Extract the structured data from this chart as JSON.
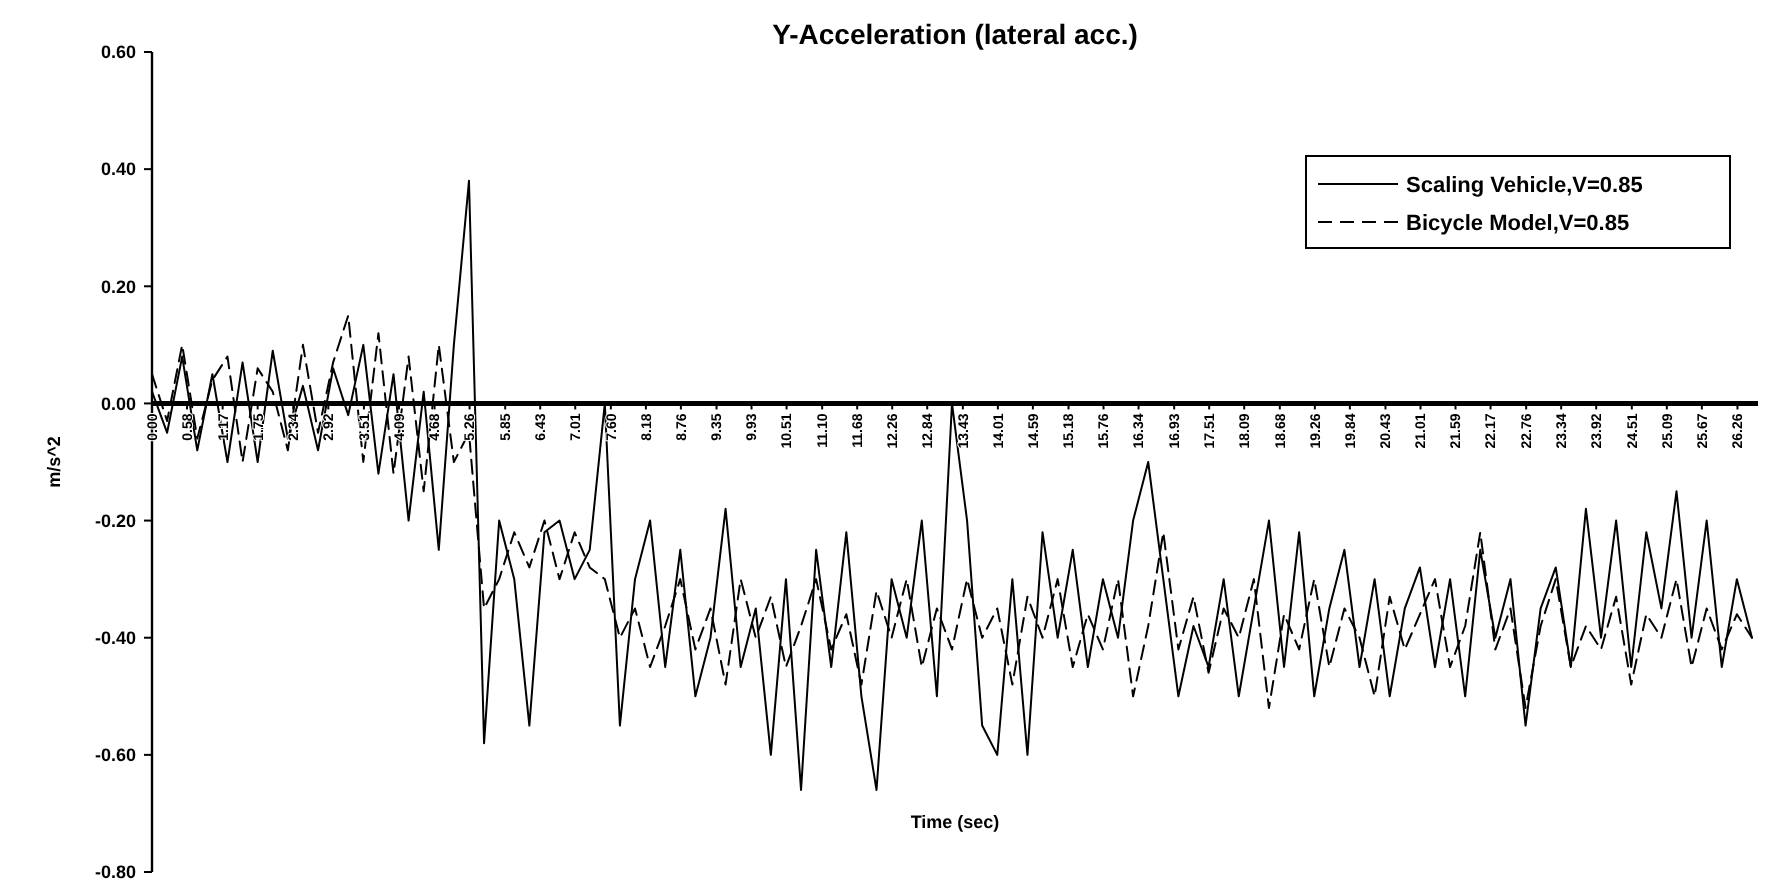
{
  "chart_data": {
    "type": "line",
    "title": "Y-Acceleration (lateral acc.)",
    "xlabel": "Time (sec)",
    "ylabel": "m/s^2",
    "x": [
      0,
      0.25,
      0.5,
      0.75,
      1,
      1.25,
      1.5,
      1.75,
      2,
      2.25,
      2.5,
      2.75,
      3,
      3.25,
      3.5,
      3.75,
      4,
      4.25,
      4.5,
      4.75,
      5,
      5.25,
      5.5,
      5.75,
      6,
      6.25,
      6.5,
      6.75,
      7,
      7.25,
      7.5,
      7.75,
      8,
      8.25,
      8.5,
      8.75,
      9,
      9.25,
      9.5,
      9.75,
      10,
      10.25,
      10.5,
      10.75,
      11,
      11.25,
      11.5,
      11.75,
      12,
      12.25,
      12.5,
      12.75,
      13,
      13.25,
      13.5,
      13.75,
      14,
      14.25,
      14.5,
      14.75,
      15,
      15.25,
      15.5,
      15.75,
      16,
      16.25,
      16.5,
      16.75,
      17,
      17.25,
      17.5,
      17.75,
      18,
      18.25,
      18.5,
      18.75,
      19,
      19.25,
      19.5,
      19.75,
      20,
      20.25,
      20.5,
      20.75,
      21,
      21.25,
      21.5,
      21.75,
      22,
      22.25,
      22.5,
      22.75,
      23,
      23.25,
      23.5,
      23.75,
      24,
      24.25,
      24.5,
      24.75,
      25,
      25.25,
      25.5,
      25.75,
      26,
      26.25,
      26.5
    ],
    "series": [
      {
        "name": "Scaling Vehicle,V=0.85",
        "color": "#000000",
        "line_style": "solid",
        "values": [
          0.02,
          -0.05,
          0.08,
          -0.08,
          0.05,
          -0.1,
          0.07,
          -0.1,
          0.09,
          -0.06,
          0.03,
          -0.08,
          0.06,
          -0.02,
          0.1,
          -0.12,
          0.05,
          -0.2,
          0.02,
          -0.25,
          0.1,
          0.38,
          -0.58,
          -0.2,
          -0.3,
          -0.55,
          -0.22,
          -0.2,
          -0.3,
          -0.25,
          0.0,
          -0.55,
          -0.3,
          -0.2,
          -0.45,
          -0.25,
          -0.5,
          -0.4,
          -0.18,
          -0.45,
          -0.35,
          -0.6,
          -0.3,
          -0.66,
          -0.25,
          -0.45,
          -0.22,
          -0.5,
          -0.66,
          -0.3,
          -0.4,
          -0.2,
          -0.5,
          0.0,
          -0.2,
          -0.55,
          -0.6,
          -0.3,
          -0.6,
          -0.22,
          -0.4,
          -0.25,
          -0.45,
          -0.3,
          -0.4,
          -0.2,
          -0.1,
          -0.3,
          -0.5,
          -0.38,
          -0.45,
          -0.3,
          -0.5,
          -0.35,
          -0.2,
          -0.45,
          -0.22,
          -0.5,
          -0.35,
          -0.25,
          -0.45,
          -0.3,
          -0.5,
          -0.35,
          -0.28,
          -0.45,
          -0.3,
          -0.5,
          -0.25,
          -0.4,
          -0.3,
          -0.55,
          -0.35,
          -0.28,
          -0.45,
          -0.18,
          -0.4,
          -0.2,
          -0.45,
          -0.22,
          -0.35,
          -0.15,
          -0.4,
          -0.2,
          -0.45,
          -0.3,
          -0.4
        ]
      },
      {
        "name": "Bicycle Model,V=0.85",
        "color": "#000000",
        "line_style": "dashed",
        "values": [
          0.05,
          -0.03,
          0.1,
          -0.06,
          0.04,
          0.08,
          -0.1,
          0.06,
          0.02,
          -0.08,
          0.1,
          -0.05,
          0.07,
          0.15,
          -0.1,
          0.12,
          -0.12,
          0.08,
          -0.15,
          0.1,
          -0.1,
          -0.05,
          -0.35,
          -0.3,
          -0.22,
          -0.28,
          -0.2,
          -0.3,
          -0.22,
          -0.28,
          -0.3,
          -0.4,
          -0.35,
          -0.45,
          -0.38,
          -0.3,
          -0.42,
          -0.35,
          -0.48,
          -0.3,
          -0.4,
          -0.33,
          -0.45,
          -0.38,
          -0.3,
          -0.42,
          -0.36,
          -0.48,
          -0.32,
          -0.4,
          -0.3,
          -0.45,
          -0.35,
          -0.42,
          -0.3,
          -0.4,
          -0.35,
          -0.48,
          -0.33,
          -0.4,
          -0.3,
          -0.45,
          -0.36,
          -0.42,
          -0.3,
          -0.5,
          -0.38,
          -0.22,
          -0.42,
          -0.33,
          -0.46,
          -0.35,
          -0.4,
          -0.3,
          -0.52,
          -0.36,
          -0.42,
          -0.3,
          -0.45,
          -0.35,
          -0.4,
          -0.5,
          -0.33,
          -0.42,
          -0.36,
          -0.3,
          -0.45,
          -0.38,
          -0.22,
          -0.42,
          -0.35,
          -0.52,
          -0.38,
          -0.3,
          -0.45,
          -0.38,
          -0.42,
          -0.33,
          -0.48,
          -0.36,
          -0.4,
          -0.3,
          -0.45,
          -0.35,
          -0.42,
          -0.36,
          -0.4
        ]
      }
    ],
    "xlim": [
      0,
      26.6
    ],
    "xticks": [
      {
        "value": 0,
        "label": "0.00"
      },
      {
        "value": 0.58,
        "label": "0.58"
      },
      {
        "value": 1.17,
        "label": "1.17"
      },
      {
        "value": 1.75,
        "label": "1.75"
      },
      {
        "value": 2.34,
        "label": "2.34"
      },
      {
        "value": 2.92,
        "label": "2.92"
      },
      {
        "value": 3.51,
        "label": "3.51"
      },
      {
        "value": 4.09,
        "label": "4.09"
      },
      {
        "value": 4.68,
        "label": "4.68"
      },
      {
        "value": 5.26,
        "label": "5.26"
      },
      {
        "value": 5.85,
        "label": "5.85"
      },
      {
        "value": 6.43,
        "label": "6.43"
      },
      {
        "value": 7.01,
        "label": "7.01"
      },
      {
        "value": 7.6,
        "label": "7.60"
      },
      {
        "value": 8.18,
        "label": "8.18"
      },
      {
        "value": 8.76,
        "label": "8.76"
      },
      {
        "value": 9.35,
        "label": "9.35"
      },
      {
        "value": 9.93,
        "label": "9.93"
      },
      {
        "value": 10.51,
        "label": "10.51"
      },
      {
        "value": 11.1,
        "label": "11.10"
      },
      {
        "value": 11.68,
        "label": "11.68"
      },
      {
        "value": 12.26,
        "label": "12.26"
      },
      {
        "value": 12.84,
        "label": "12.84"
      },
      {
        "value": 13.43,
        "label": "13.43"
      },
      {
        "value": 14.01,
        "label": "14.01"
      },
      {
        "value": 14.59,
        "label": "14.59"
      },
      {
        "value": 15.18,
        "label": "15.18"
      },
      {
        "value": 15.76,
        "label": "15.76"
      },
      {
        "value": 16.34,
        "label": "16.34"
      },
      {
        "value": 16.93,
        "label": "16.93"
      },
      {
        "value": 17.51,
        "label": "17.51"
      },
      {
        "value": 18.09,
        "label": "18.09"
      },
      {
        "value": 18.68,
        "label": "18.68"
      },
      {
        "value": 19.26,
        "label": "19.26"
      },
      {
        "value": 19.84,
        "label": "19.84"
      },
      {
        "value": 20.43,
        "label": "20.43"
      },
      {
        "value": 21.01,
        "label": "21.01"
      },
      {
        "value": 21.59,
        "label": "21.59"
      },
      {
        "value": 22.17,
        "label": "22.17"
      },
      {
        "value": 22.76,
        "label": "22.76"
      },
      {
        "value": 23.34,
        "label": "23.34"
      },
      {
        "value": 23.92,
        "label": "23.92"
      },
      {
        "value": 24.51,
        "label": "24.51"
      },
      {
        "value": 25.09,
        "label": "25.09"
      },
      {
        "value": 25.67,
        "label": "25.67"
      },
      {
        "value": 26.26,
        "label": "26.26"
      }
    ],
    "ylim": [
      -0.8,
      0.6
    ],
    "yticks": [
      {
        "value": -0.8,
        "label": "-0.80"
      },
      {
        "value": -0.6,
        "label": "-0.60"
      },
      {
        "value": -0.4,
        "label": "-0.40"
      },
      {
        "value": -0.2,
        "label": "-0.20"
      },
      {
        "value": 0,
        "label": "0.00"
      },
      {
        "value": 0.2,
        "label": "0.20"
      },
      {
        "value": 0.4,
        "label": "0.40"
      },
      {
        "value": 0.6,
        "label": "0.60"
      }
    ],
    "grid": false,
    "legend": "top right",
    "marker": "none"
  }
}
